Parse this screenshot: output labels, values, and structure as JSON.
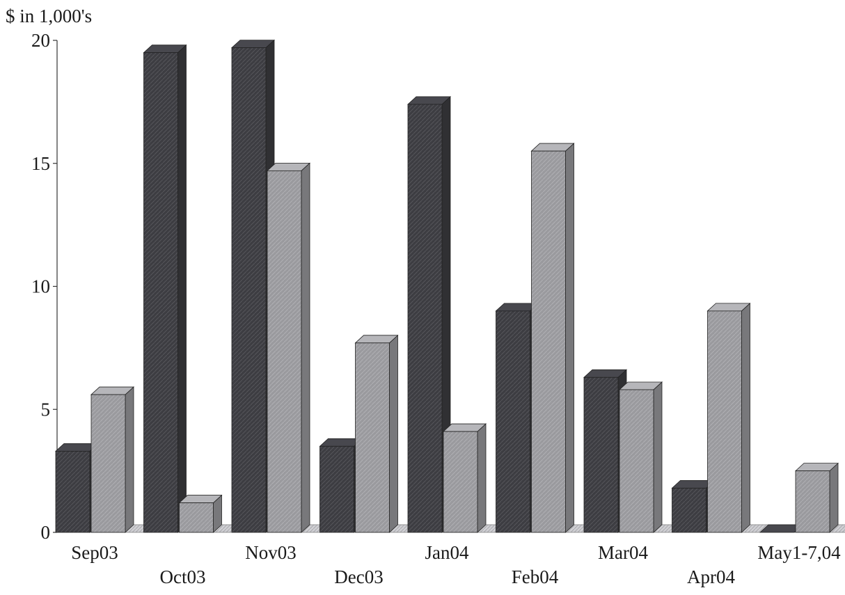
{
  "chart_data": {
    "type": "bar",
    "title": "",
    "xlabel": "",
    "ylabel": "$ in 1,000's",
    "ylim": [
      0,
      20
    ],
    "yticks": [
      "0",
      "5",
      "10",
      "15",
      "20"
    ],
    "grid": false,
    "legend": "none",
    "style": "3d-clustered-columns",
    "categories": [
      "Sep03",
      "Oct03",
      "Nov03",
      "Dec03",
      "Jan04",
      "Feb04",
      "Mar04",
      "Apr04",
      "May1-7,04"
    ],
    "series": [
      {
        "values": [
          3.3,
          19.5,
          19.7,
          3.5,
          17.4,
          9.0,
          6.3,
          1.8,
          0.0
        ],
        "color": "#3d3d42"
      },
      {
        "values": [
          5.6,
          1.2,
          14.7,
          7.7,
          4.1,
          15.5,
          5.8,
          9.0,
          2.5
        ],
        "color": "#9a9a9e"
      }
    ],
    "floor_color": "#c4c4c8"
  }
}
